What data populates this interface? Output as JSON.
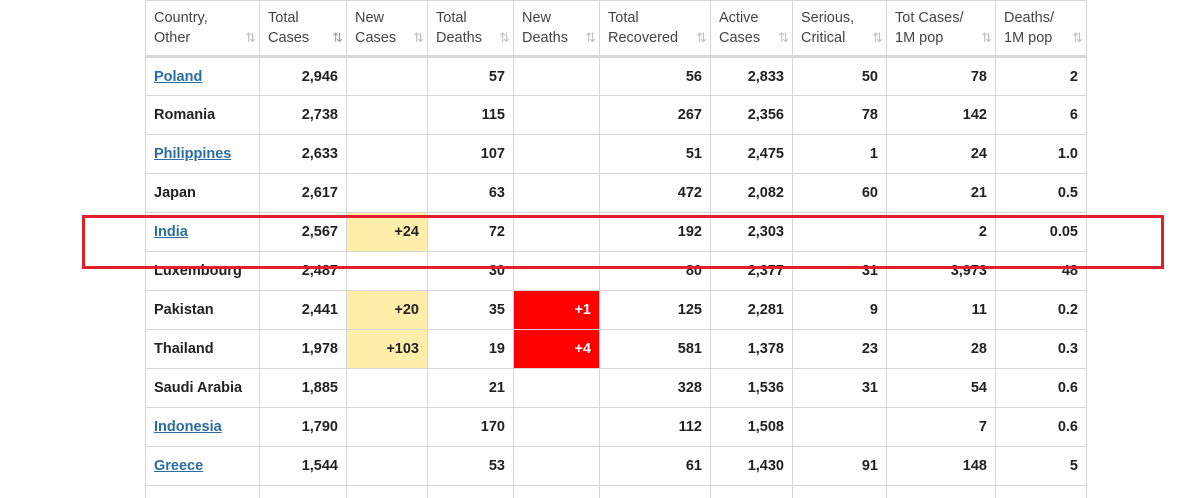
{
  "headers": [
    {
      "key": "country",
      "line1": "Country,",
      "line2": "Other",
      "sort": "⇅",
      "active": false
    },
    {
      "key": "total_cases",
      "line1": "Total",
      "line2": "Cases",
      "sort": "⇅",
      "active": true
    },
    {
      "key": "new_cases",
      "line1": "New",
      "line2": "Cases",
      "sort": "⇅",
      "active": false
    },
    {
      "key": "total_deaths",
      "line1": "Total",
      "line2": "Deaths",
      "sort": "⇅",
      "active": false
    },
    {
      "key": "new_deaths",
      "line1": "New",
      "line2": "Deaths",
      "sort": "⇅",
      "active": false
    },
    {
      "key": "total_recovered",
      "line1": "Total",
      "line2": "Recovered",
      "sort": "⇅",
      "active": false
    },
    {
      "key": "active_cases",
      "line1": "Active",
      "line2": "Cases",
      "sort": "⇅",
      "active": false
    },
    {
      "key": "serious",
      "line1": "Serious,",
      "line2": "Critical",
      "sort": "⇅",
      "active": false
    },
    {
      "key": "tot_cases_1m",
      "line1": "Tot Cases/",
      "line2": "1M pop",
      "sort": "⇅",
      "active": false
    },
    {
      "key": "deaths_1m",
      "line1": "Deaths/",
      "line2": "1M pop",
      "sort": "⇅",
      "active": false
    }
  ],
  "rows": [
    {
      "country": "Poland",
      "link": true,
      "total_cases": "2,946",
      "new_cases": "",
      "total_deaths": "57",
      "new_deaths": "",
      "total_recovered": "56",
      "active_cases": "2,833",
      "serious": "50",
      "tot_cases_1m": "78",
      "deaths_1m": "2"
    },
    {
      "country": "Romania",
      "link": false,
      "total_cases": "2,738",
      "new_cases": "",
      "total_deaths": "115",
      "new_deaths": "",
      "total_recovered": "267",
      "active_cases": "2,356",
      "serious": "78",
      "tot_cases_1m": "142",
      "deaths_1m": "6"
    },
    {
      "country": "Philippines",
      "link": true,
      "total_cases": "2,633",
      "new_cases": "",
      "total_deaths": "107",
      "new_deaths": "",
      "total_recovered": "51",
      "active_cases": "2,475",
      "serious": "1",
      "tot_cases_1m": "24",
      "deaths_1m": "1.0"
    },
    {
      "country": "Japan",
      "link": false,
      "total_cases": "2,617",
      "new_cases": "",
      "total_deaths": "63",
      "new_deaths": "",
      "total_recovered": "472",
      "active_cases": "2,082",
      "serious": "60",
      "tot_cases_1m": "21",
      "deaths_1m": "0.5"
    },
    {
      "country": "India",
      "link": true,
      "total_cases": "2,567",
      "new_cases": "+24",
      "total_deaths": "72",
      "new_deaths": "",
      "total_recovered": "192",
      "active_cases": "2,303",
      "serious": "",
      "tot_cases_1m": "2",
      "deaths_1m": "0.05"
    },
    {
      "country": "Luxembourg",
      "link": false,
      "total_cases": "2,487",
      "new_cases": "",
      "total_deaths": "30",
      "new_deaths": "",
      "total_recovered": "80",
      "active_cases": "2,377",
      "serious": "31",
      "tot_cases_1m": "3,973",
      "deaths_1m": "48"
    },
    {
      "country": "Pakistan",
      "link": false,
      "total_cases": "2,441",
      "new_cases": "+20",
      "total_deaths": "35",
      "new_deaths": "+1",
      "total_recovered": "125",
      "active_cases": "2,281",
      "serious": "9",
      "tot_cases_1m": "11",
      "deaths_1m": "0.2"
    },
    {
      "country": "Thailand",
      "link": false,
      "total_cases": "1,978",
      "new_cases": "+103",
      "total_deaths": "19",
      "new_deaths": "+4",
      "total_recovered": "581",
      "active_cases": "1,378",
      "serious": "23",
      "tot_cases_1m": "28",
      "deaths_1m": "0.3"
    },
    {
      "country": "Saudi Arabia",
      "link": false,
      "total_cases": "1,885",
      "new_cases": "",
      "total_deaths": "21",
      "new_deaths": "",
      "total_recovered": "328",
      "active_cases": "1,536",
      "serious": "31",
      "tot_cases_1m": "54",
      "deaths_1m": "0.6"
    },
    {
      "country": "Indonesia",
      "link": true,
      "total_cases": "1,790",
      "new_cases": "",
      "total_deaths": "170",
      "new_deaths": "",
      "total_recovered": "112",
      "active_cases": "1,508",
      "serious": "",
      "tot_cases_1m": "7",
      "deaths_1m": "0.6"
    },
    {
      "country": "Greece",
      "link": true,
      "total_cases": "1,544",
      "new_cases": "",
      "total_deaths": "53",
      "new_deaths": "",
      "total_recovered": "61",
      "active_cases": "1,430",
      "serious": "91",
      "tot_cases_1m": "148",
      "deaths_1m": "5"
    }
  ],
  "colors": {
    "new_cases_highlight": "#ffeeaa",
    "new_deaths_highlight": "#ff0000",
    "link": "#2b6d9e",
    "annotation_box": "#e0202c"
  }
}
